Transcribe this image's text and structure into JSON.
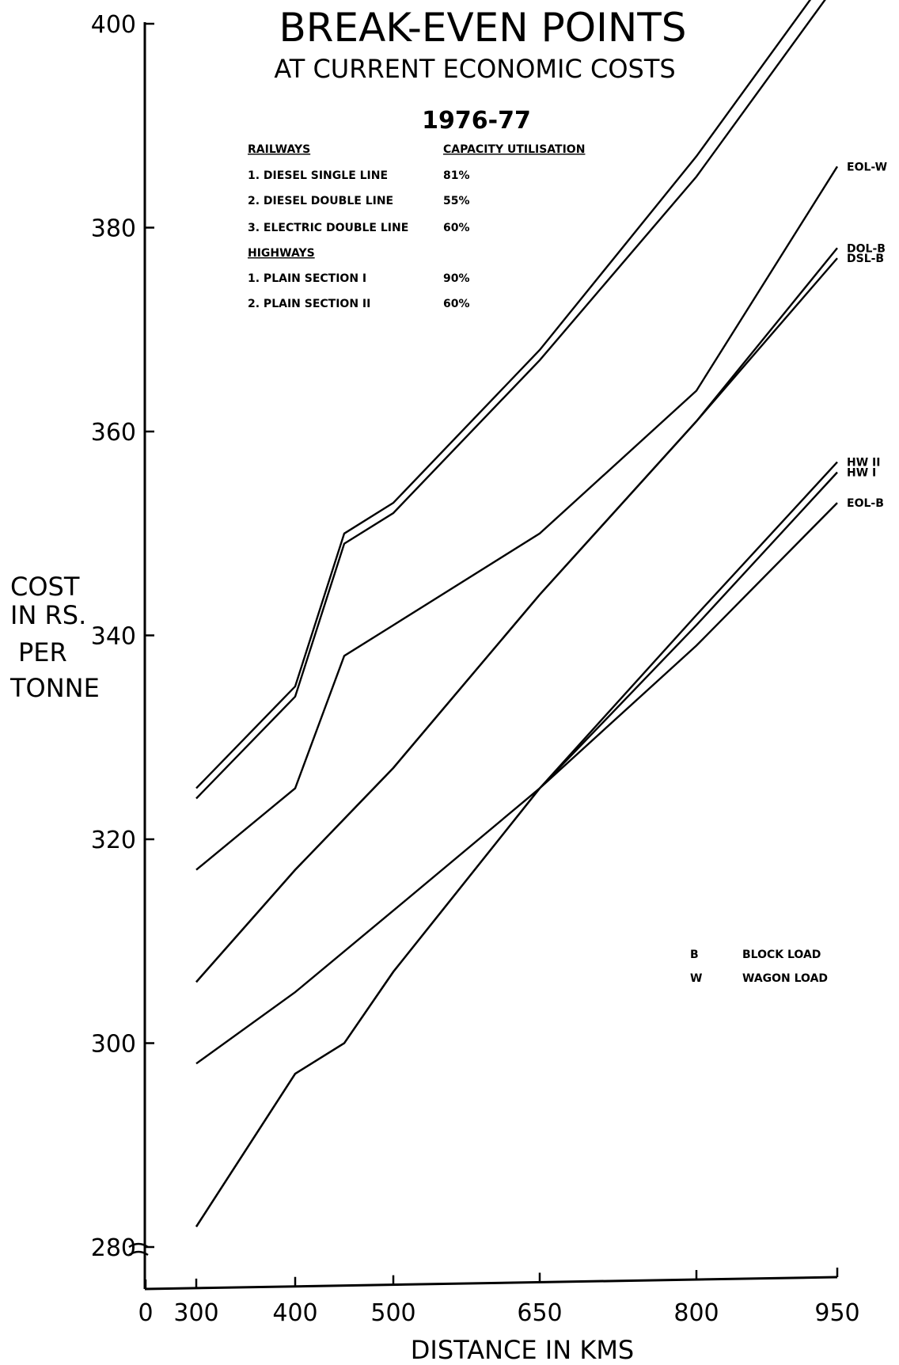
{
  "chart_data": {
    "type": "line",
    "title": "BREAK-EVEN POINTS",
    "subtitle": "AT CURRENT ECONOMIC COSTS",
    "year": "1976-77",
    "xlabel": "DISTANCE IN KMS",
    "ylabel": [
      "COST",
      "IN RS.",
      "PER",
      "TONNE"
    ],
    "x_ticks": [
      "0",
      "300",
      "400",
      "500",
      "650",
      "800",
      "950"
    ],
    "y_ticks": [
      "280",
      "300",
      "320",
      "340",
      "360",
      "380",
      "400"
    ],
    "ylim": [
      280,
      400
    ],
    "x": [
      300,
      400,
      500,
      650,
      800,
      950
    ],
    "table": {
      "railways_heading": "RAILWAYS",
      "capacity_heading": "CAPACITY UTILISATION",
      "railways": [
        {
          "label": "1. DIESEL SINGLE LINE",
          "value": "81%"
        },
        {
          "label": "2. DIESEL DOUBLE LINE",
          "value": "55%"
        },
        {
          "label": "3. ELECTRIC DOUBLE LINE",
          "value": "60%"
        }
      ],
      "highways_heading": "HIGHWAYS",
      "highways": [
        {
          "label": "1. PLAIN SECTION I",
          "value": "90%"
        },
        {
          "label": "2. PLAIN SECTION II",
          "value": "60%"
        }
      ]
    },
    "legend": [
      {
        "key": "B",
        "text": "BLOCK LOAD"
      },
      {
        "key": "W",
        "text": "WAGON LOAD"
      }
    ],
    "series": [
      {
        "name": "EOL-W",
        "points": [
          [
            300,
            317
          ],
          [
            400,
            325
          ],
          [
            450,
            338
          ],
          [
            500,
            341
          ],
          [
            650,
            350
          ],
          [
            800,
            364
          ],
          [
            950,
            386
          ]
        ]
      },
      {
        "name": "DOL-B",
        "points": [
          [
            300,
            306
          ],
          [
            400,
            317
          ],
          [
            500,
            327
          ],
          [
            650,
            344
          ],
          [
            800,
            361
          ],
          [
            950,
            378
          ]
        ]
      },
      {
        "name": "DSL-B",
        "points": [
          [
            300,
            306
          ],
          [
            400,
            317
          ],
          [
            500,
            327
          ],
          [
            650,
            344
          ],
          [
            800,
            361
          ],
          [
            950,
            377
          ]
        ]
      },
      {
        "name": "HW II",
        "points": [
          [
            300,
            282
          ],
          [
            400,
            297
          ],
          [
            450,
            300
          ],
          [
            500,
            307
          ],
          [
            650,
            325
          ],
          [
            800,
            342
          ],
          [
            950,
            357
          ]
        ]
      },
      {
        "name": "HW I",
        "points": [
          [
            300,
            282
          ],
          [
            400,
            297
          ],
          [
            450,
            300
          ],
          [
            500,
            307
          ],
          [
            650,
            325
          ],
          [
            800,
            341
          ],
          [
            950,
            356
          ]
        ]
      },
      {
        "name": "EOL-B",
        "points": [
          [
            300,
            298
          ],
          [
            400,
            305
          ],
          [
            500,
            313
          ],
          [
            650,
            325
          ],
          [
            800,
            339
          ],
          [
            950,
            353
          ]
        ]
      },
      {
        "points": [
          [
            300,
            325
          ],
          [
            400,
            335
          ],
          [
            450,
            350
          ],
          [
            500,
            353
          ],
          [
            650,
            368
          ],
          [
            800,
            387
          ],
          [
            950,
            406
          ]
        ]
      },
      {
        "points": [
          [
            300,
            324
          ],
          [
            400,
            334
          ],
          [
            450,
            349
          ],
          [
            500,
            352
          ],
          [
            650,
            367
          ],
          [
            800,
            385
          ],
          [
            950,
            404
          ]
        ]
      }
    ]
  }
}
